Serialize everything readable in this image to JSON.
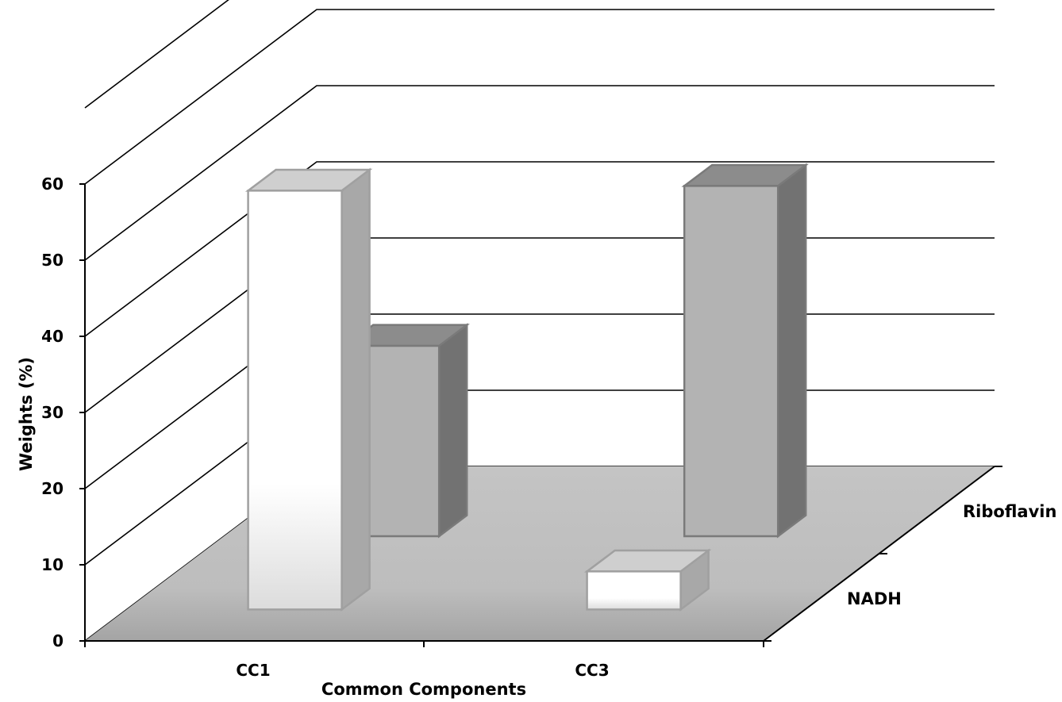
{
  "chart_data": {
    "type": "bar",
    "subtype": "3d-column",
    "categories": [
      "CC1",
      "CC3"
    ],
    "series": [
      {
        "name": "NADH",
        "values": [
          55,
          5
        ],
        "color": "#ffffff"
      },
      {
        "name": "Riboflavin",
        "values": [
          25,
          46
        ],
        "color": "#b3b3b3"
      }
    ],
    "xlabel": "Common Components",
    "ylabel": "Weights (%)",
    "ylim": [
      0,
      60
    ],
    "yticks": [
      "0",
      "10",
      "20",
      "30",
      "40",
      "50",
      "60"
    ],
    "grid": true,
    "floor_color": "#c0c0c0"
  }
}
